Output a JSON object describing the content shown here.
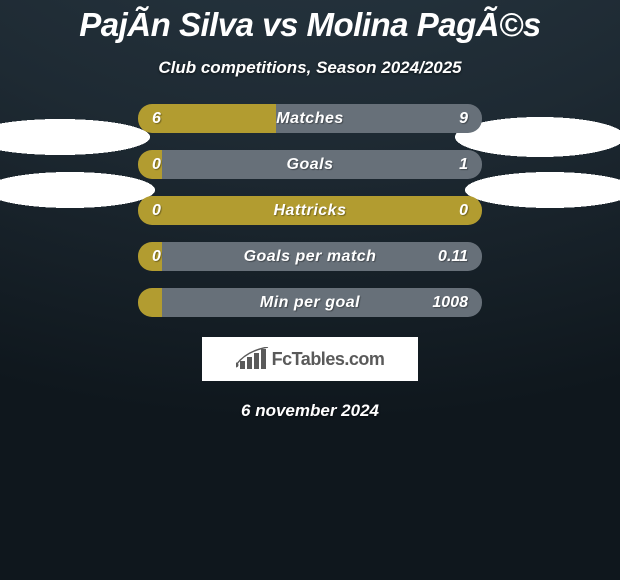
{
  "colors": {
    "left_bar": "#b29c30",
    "right_bar": "#677079",
    "title_text": "#ffffff",
    "value_text": "#ffffff"
  },
  "typography": {
    "title_fontsize": 33,
    "subtitle_fontsize": 17,
    "stat_label_fontsize": 16,
    "stat_value_fontsize": 16,
    "date_fontsize": 17
  },
  "title": "PajÃ­n Silva vs Molina PagÃ©s",
  "subtitle": "Club competitions, Season 2024/2025",
  "stats": [
    {
      "label": "Matches",
      "left_value": "6",
      "right_value": "9",
      "left_pct": 40,
      "right_pct": 60
    },
    {
      "label": "Goals",
      "left_value": "0",
      "right_value": "1",
      "left_pct": 7,
      "right_pct": 93
    },
    {
      "label": "Hattricks",
      "left_value": "0",
      "right_value": "0",
      "left_pct": 100,
      "right_pct": 0
    },
    {
      "label": "Goals per match",
      "left_value": "0",
      "right_value": "0.11",
      "left_pct": 7,
      "right_pct": 93
    },
    {
      "label": "Min per goal",
      "left_value": "",
      "right_value": "1008",
      "left_pct": 7,
      "right_pct": 93
    }
  ],
  "footer_brand": "FcTables.com",
  "date": "6 november 2024"
}
